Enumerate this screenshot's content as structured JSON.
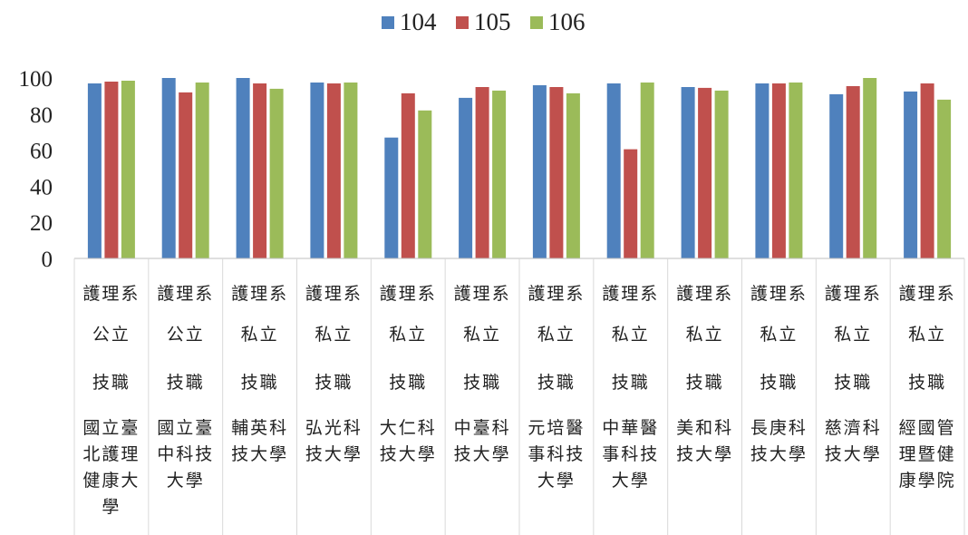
{
  "chart_data": {
    "type": "bar",
    "legend_position": "top",
    "grid": false,
    "ylim": [
      0,
      100
    ],
    "yticks": [
      "0",
      "20",
      "40",
      "60",
      "80",
      "100"
    ],
    "series": [
      {
        "name": "104",
        "color": "#4F81BD",
        "values": [
          97,
          100,
          100,
          97.5,
          67,
          89,
          96,
          97,
          95,
          97,
          91,
          92.5
        ]
      },
      {
        "name": "105",
        "color": "#C0504D",
        "values": [
          98,
          92,
          97,
          97,
          91.5,
          95,
          95,
          60.5,
          94.5,
          97,
          95.5,
          97
        ]
      },
      {
        "name": "106",
        "color": "#9BBB59",
        "values": [
          98.5,
          97.5,
          94,
          97.5,
          82,
          93,
          91.5,
          97.5,
          93,
          97.5,
          100,
          88
        ]
      }
    ],
    "categories": [
      {
        "dept": "護理系",
        "type": "公立",
        "system": "技職",
        "school": [
          "國立臺",
          "北護理",
          "健康大",
          "學"
        ]
      },
      {
        "dept": "護理系",
        "type": "公立",
        "system": "技職",
        "school": [
          "國立臺",
          "中科技",
          "大學"
        ]
      },
      {
        "dept": "護理系",
        "type": "私立",
        "system": "技職",
        "school": [
          "輔英科",
          "技大學"
        ]
      },
      {
        "dept": "護理系",
        "type": "私立",
        "system": "技職",
        "school": [
          "弘光科",
          "技大學"
        ]
      },
      {
        "dept": "護理系",
        "type": "私立",
        "system": "技職",
        "school": [
          "大仁科",
          "技大學"
        ]
      },
      {
        "dept": "護理系",
        "type": "私立",
        "system": "技職",
        "school": [
          "中臺科",
          "技大學"
        ]
      },
      {
        "dept": "護理系",
        "type": "私立",
        "system": "技職",
        "school": [
          "元培醫",
          "事科技",
          "大學"
        ]
      },
      {
        "dept": "護理系",
        "type": "私立",
        "system": "技職",
        "school": [
          "中華醫",
          "事科技",
          "大學"
        ]
      },
      {
        "dept": "護理系",
        "type": "私立",
        "system": "技職",
        "school": [
          "美和科",
          "技大學"
        ]
      },
      {
        "dept": "護理系",
        "type": "私立",
        "system": "技職",
        "school": [
          "長庚科",
          "技大學"
        ]
      },
      {
        "dept": "護理系",
        "type": "私立",
        "system": "技職",
        "school": [
          "慈濟科",
          "技大學"
        ]
      },
      {
        "dept": "護理系",
        "type": "私立",
        "system": "技職",
        "school": [
          "經國管",
          "理暨健",
          "康學院"
        ]
      }
    ]
  }
}
